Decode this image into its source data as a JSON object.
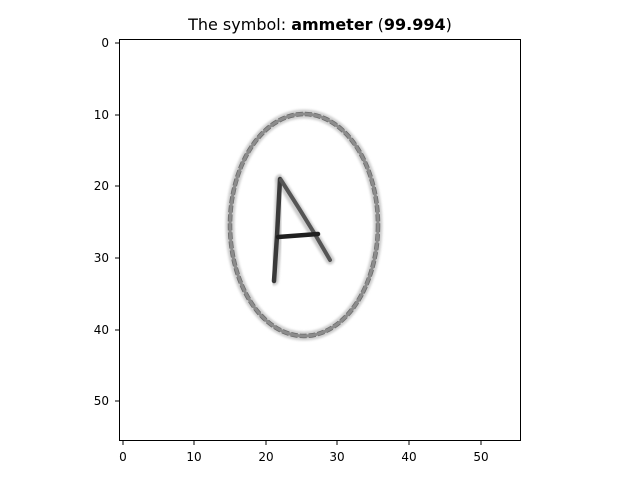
{
  "title": {
    "prefix": "The symbol: ",
    "label": "ammeter",
    "open_paren": " (",
    "score": "99.994",
    "close_paren": ")"
  },
  "axes": {
    "x_ticks": [
      "0",
      "10",
      "20",
      "30",
      "40",
      "50"
    ],
    "y_ticks": [
      "0",
      "10",
      "20",
      "30",
      "40",
      "50"
    ],
    "grid": false,
    "image_size": [
      56,
      56
    ]
  },
  "image_content": {
    "symbol": "circle enclosing the letter A",
    "stroke_color": "#5a5a5a",
    "background": "#ffffff"
  }
}
